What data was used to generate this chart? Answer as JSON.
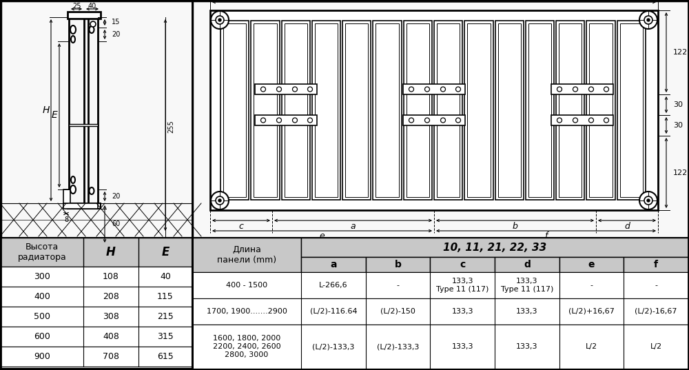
{
  "bg_color": "#ffffff",
  "table_header_bg": "#c8c8c8",
  "left_table": {
    "header": [
      "Высота\nрадиатора",
      "H",
      "E"
    ],
    "rows": [
      [
        "300",
        "108",
        "40"
      ],
      [
        "400",
        "208",
        "115"
      ],
      [
        "500",
        "308",
        "215"
      ],
      [
        "600",
        "408",
        "315"
      ],
      [
        "900",
        "708",
        "615"
      ]
    ]
  },
  "right_table": {
    "col1_header": "Длина\nпанели (mm)",
    "type_header": "10, 11, 21, 22, 33",
    "sub_headers": [
      "a",
      "b",
      "c",
      "d",
      "e",
      "f"
    ],
    "rows": [
      {
        "length": "400 - 1500",
        "a": "L-266,6",
        "b": "-",
        "c": "133,3\nType 11 (117)",
        "d": "133,3\nType 11 (117)",
        "e": "-",
        "f": "-"
      },
      {
        "length": "1700, 1900.......2900",
        "a": "(L/2)-116.64",
        "b": "(L/2)-150",
        "c": "133,3",
        "d": "133,3",
        "e": "(L/2)+16,67",
        "f": "(L/2)-16,67"
      },
      {
        "length": "1600, 1800, 2000\n2200, 2400, 2600\n2800, 3000",
        "a": "(L/2)-133,3",
        "b": "(L/2)-133,3",
        "c": "133,3",
        "d": "133,3",
        "e": "L/2",
        "f": "L/2"
      }
    ]
  }
}
